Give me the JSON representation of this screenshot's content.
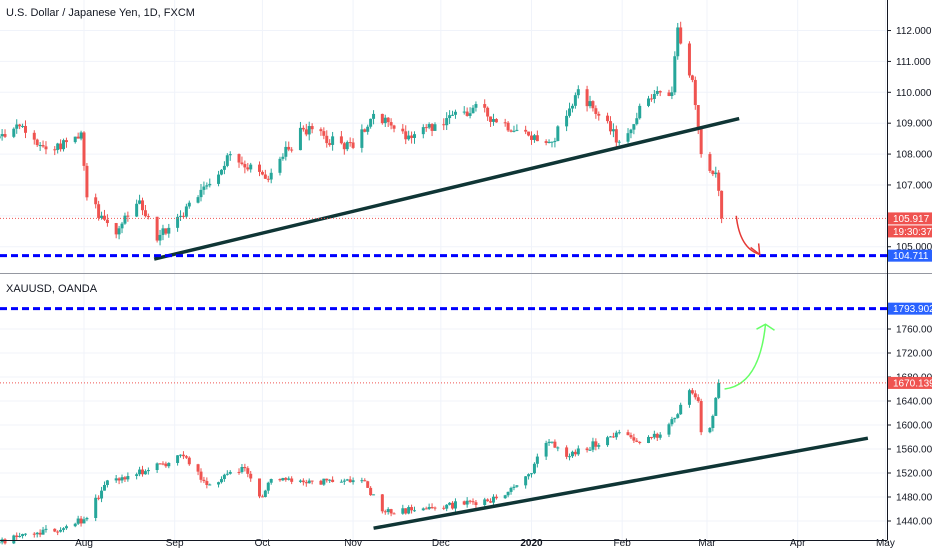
{
  "colors": {
    "up": "#26a69a",
    "down": "#ef5350",
    "grid": "#f0f3fa",
    "axis_text": "#131722",
    "dashed_level": "#0000ff",
    "trendline": "#0f3535",
    "annotation_down": "#e53935",
    "annotation_up": "#66ff66",
    "tag_red": "#ef5350",
    "tag_blue": "#2962ff"
  },
  "chart_data": [
    {
      "type": "candlestick",
      "title": "U.S. Dollar / Japanese Yen, 1D, FXCM",
      "ylim": [
        104.7,
        112.6
      ],
      "y_ticks": [
        "112.000",
        "111.000",
        "110.000",
        "109.000",
        "108.000",
        "107.000",
        "106.000",
        "105.000"
      ],
      "y_tick_values": [
        112,
        111,
        110,
        109,
        108,
        107,
        106,
        105
      ],
      "candle_anchors": [
        {
          "date": "2019-07-01",
          "close": 108.4
        },
        {
          "date": "2019-07-10",
          "close": 108.9
        },
        {
          "date": "2019-07-20",
          "close": 108.1
        },
        {
          "date": "2019-07-31",
          "close": 108.7
        },
        {
          "date": "2019-08-02",
          "close": 106.6
        },
        {
          "date": "2019-08-12",
          "close": 105.4
        },
        {
          "date": "2019-08-20",
          "close": 106.5
        },
        {
          "date": "2019-08-26",
          "close": 105.2
        },
        {
          "date": "2019-09-03",
          "close": 106.0
        },
        {
          "date": "2019-09-20",
          "close": 108.0
        },
        {
          "date": "2019-10-02",
          "close": 107.2
        },
        {
          "date": "2019-10-15",
          "close": 108.8
        },
        {
          "date": "2019-11-01",
          "close": 108.2
        },
        {
          "date": "2019-11-08",
          "close": 109.3
        },
        {
          "date": "2019-11-20",
          "close": 108.6
        },
        {
          "date": "2019-12-12",
          "close": 109.5
        },
        {
          "date": "2019-12-31",
          "close": 108.6
        },
        {
          "date": "2020-01-08",
          "close": 108.4
        },
        {
          "date": "2020-01-17",
          "close": 110.1
        },
        {
          "date": "2020-01-31",
          "close": 108.4
        },
        {
          "date": "2020-02-10",
          "close": 109.8
        },
        {
          "date": "2020-02-18",
          "close": 110.0
        },
        {
          "date": "2020-02-20",
          "close": 112.1
        },
        {
          "date": "2020-02-25",
          "close": 110.4
        },
        {
          "date": "2020-02-28",
          "close": 108.0
        },
        {
          "date": "2020-03-04",
          "close": 107.4
        },
        {
          "date": "2020-03-06",
          "close": 105.917
        }
      ],
      "last_price": "105.917",
      "last_price_value": 105.917,
      "countdown": "19:30:37",
      "level": {
        "value": 104.711,
        "label": "104.711"
      },
      "trendline": [
        {
          "date": "2019-08-25",
          "value": 104.6
        },
        {
          "date": "2020-03-12",
          "value": 109.15
        }
      ],
      "arrow": {
        "direction": "down",
        "from_date": "2020-03-11",
        "from_value": 106.0,
        "to_date": "2020-03-19",
        "to_value": 104.75
      }
    },
    {
      "type": "candlestick",
      "title": "XAUUSD, OANDA",
      "ylim": [
        1425,
        1810
      ],
      "y_ticks": [
        "1760.000",
        "1720.000",
        "1680.000",
        "1640.000",
        "1600.000",
        "1560.000",
        "1520.000",
        "1480.000",
        "1440.000"
      ],
      "y_tick_values": [
        1760,
        1720,
        1680,
        1640,
        1600,
        1560,
        1520,
        1480,
        1440
      ],
      "candle_anchors": [
        {
          "date": "2019-07-01",
          "close": 1405
        },
        {
          "date": "2019-07-15",
          "close": 1418
        },
        {
          "date": "2019-07-25",
          "close": 1428
        },
        {
          "date": "2019-08-02",
          "close": 1445
        },
        {
          "date": "2019-08-08",
          "close": 1500
        },
        {
          "date": "2019-08-16",
          "close": 1515
        },
        {
          "date": "2019-08-23",
          "close": 1525
        },
        {
          "date": "2019-09-04",
          "close": 1548
        },
        {
          "date": "2019-09-12",
          "close": 1500
        },
        {
          "date": "2019-09-24",
          "close": 1530
        },
        {
          "date": "2019-10-01",
          "close": 1480
        },
        {
          "date": "2019-10-04",
          "close": 1510
        },
        {
          "date": "2019-10-25",
          "close": 1505
        },
        {
          "date": "2019-11-04",
          "close": 1508
        },
        {
          "date": "2019-11-12",
          "close": 1455
        },
        {
          "date": "2019-11-29",
          "close": 1462
        },
        {
          "date": "2019-12-20",
          "close": 1478
        },
        {
          "date": "2019-12-31",
          "close": 1518
        },
        {
          "date": "2020-01-07",
          "close": 1572
        },
        {
          "date": "2020-01-14",
          "close": 1548
        },
        {
          "date": "2020-01-31",
          "close": 1588
        },
        {
          "date": "2020-02-07",
          "close": 1570
        },
        {
          "date": "2020-02-14",
          "close": 1584
        },
        {
          "date": "2020-02-20",
          "close": 1618
        },
        {
          "date": "2020-02-24",
          "close": 1658
        },
        {
          "date": "2020-02-27",
          "close": 1640
        },
        {
          "date": "2020-02-28",
          "close": 1588
        },
        {
          "date": "2020-03-02",
          "close": 1595
        },
        {
          "date": "2020-03-05",
          "close": 1670.139
        }
      ],
      "last_price": "1670.139",
      "last_price_value": 1670.139,
      "level": {
        "value": 1793.902,
        "label": "1793.902"
      },
      "trendline": [
        {
          "date": "2019-11-08",
          "value": 1428
        },
        {
          "date": "2020-04-25",
          "value": 1578
        }
      ],
      "arrow": {
        "direction": "up",
        "from_date": "2020-03-07",
        "from_value": 1660,
        "to_date": "2020-03-21",
        "to_value": 1768
      }
    }
  ],
  "x_axis": {
    "ticks": [
      {
        "label": "Aug",
        "date": "2019-08-01",
        "bold": false
      },
      {
        "label": "Sep",
        "date": "2019-09-01",
        "bold": false
      },
      {
        "label": "Oct",
        "date": "2019-10-01",
        "bold": false
      },
      {
        "label": "Nov",
        "date": "2019-11-01",
        "bold": false
      },
      {
        "label": "Dec",
        "date": "2019-12-01",
        "bold": false
      },
      {
        "label": "2020",
        "date": "2020-01-01",
        "bold": true
      },
      {
        "label": "Feb",
        "date": "2020-02-01",
        "bold": false
      },
      {
        "label": "Mar",
        "date": "2020-03-01",
        "bold": false
      },
      {
        "label": "Apr",
        "date": "2020-04-01",
        "bold": false
      },
      {
        "label": "May",
        "date": "2020-05-01",
        "bold": false
      }
    ]
  }
}
